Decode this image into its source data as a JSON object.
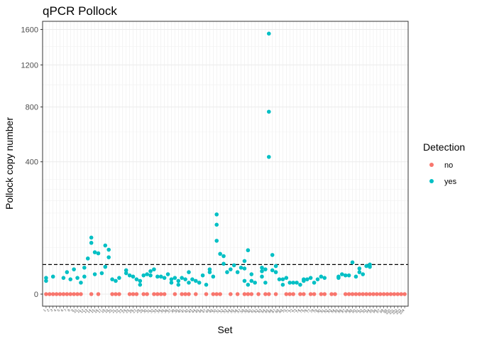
{
  "chart_data": {
    "type": "scatter",
    "title": "qPCR Pollock",
    "xlabel": "Set",
    "ylabel": "Pollock copy number",
    "y_scale": "sqrt",
    "ylim": [
      0,
      1700
    ],
    "yticks": [
      0,
      400,
      800,
      1200,
      1600
    ],
    "ytick_labels": [
      "0",
      "400",
      "800",
      "1200",
      "1600"
    ],
    "grid": true,
    "threshold_line": {
      "y": 20,
      "style": "dashed"
    },
    "legend": {
      "title": "Detection",
      "position": "right",
      "entries": [
        "no",
        "yes"
      ]
    },
    "series_colors": {
      "no": "#F8766D",
      "yes": "#00BFC4"
    },
    "x_categories": [
      "1",
      "2",
      "3",
      "4",
      "5",
      "6",
      "7",
      "8",
      "9",
      "10",
      "11",
      "12",
      "13",
      "14",
      "15",
      "16",
      "17",
      "18",
      "19",
      "20",
      "21",
      "22",
      "23",
      "24",
      "25",
      "26",
      "27",
      "28",
      "29",
      "30",
      "31",
      "32",
      "33",
      "34",
      "35",
      "36",
      "37",
      "38",
      "39",
      "40",
      "41",
      "42",
      "43",
      "44",
      "45",
      "46",
      "47",
      "48",
      "49",
      "50",
      "51",
      "52",
      "53",
      "54",
      "55",
      "56",
      "57",
      "58",
      "59",
      "60",
      "61",
      "62",
      "63",
      "64",
      "65",
      "66",
      "67",
      "68",
      "69",
      "70",
      "71",
      "72",
      "73",
      "74",
      "75",
      "76",
      "77",
      "78",
      "79",
      "80",
      "81",
      "82",
      "83",
      "84",
      "85",
      "86",
      "87",
      "88",
      "89",
      "90",
      "91",
      "92",
      "93",
      "94",
      "95",
      "96",
      "97",
      "98",
      "99",
      "100",
      "101",
      "102",
      "103",
      "104"
    ],
    "series": [
      {
        "name": "no",
        "points": [
          [
            1,
            0
          ],
          [
            2,
            0
          ],
          [
            3,
            0
          ],
          [
            4,
            0
          ],
          [
            5,
            0
          ],
          [
            6,
            0
          ],
          [
            7,
            0
          ],
          [
            8,
            0
          ],
          [
            9,
            0
          ],
          [
            10,
            0
          ],
          [
            11,
            0
          ],
          [
            14,
            0
          ],
          [
            16,
            0
          ],
          [
            20,
            0
          ],
          [
            21,
            0
          ],
          [
            22,
            0
          ],
          [
            25,
            0
          ],
          [
            26,
            0
          ],
          [
            27,
            0
          ],
          [
            29,
            0
          ],
          [
            30,
            0
          ],
          [
            32,
            0
          ],
          [
            33,
            0
          ],
          [
            34,
            0
          ],
          [
            35,
            0
          ],
          [
            38,
            0
          ],
          [
            40,
            0
          ],
          [
            41,
            0
          ],
          [
            42,
            0
          ],
          [
            44,
            0
          ],
          [
            47,
            0
          ],
          [
            49,
            0
          ],
          [
            50,
            0
          ],
          [
            51,
            0
          ],
          [
            54,
            0
          ],
          [
            56,
            0
          ],
          [
            58,
            0
          ],
          [
            59,
            0
          ],
          [
            60,
            0
          ],
          [
            62,
            0
          ],
          [
            64,
            0
          ],
          [
            65,
            0
          ],
          [
            67,
            0
          ],
          [
            70,
            0
          ],
          [
            71,
            0
          ],
          [
            72,
            0
          ],
          [
            74,
            0
          ],
          [
            75,
            0
          ],
          [
            77,
            0
          ],
          [
            78,
            0
          ],
          [
            80,
            0
          ],
          [
            81,
            0
          ],
          [
            83,
            0
          ],
          [
            84,
            0
          ],
          [
            87,
            0
          ],
          [
            88,
            0
          ],
          [
            89,
            0
          ],
          [
            90,
            0
          ],
          [
            91,
            0
          ],
          [
            92,
            0
          ],
          [
            93,
            0
          ],
          [
            94,
            0
          ],
          [
            95,
            0
          ],
          [
            96,
            0
          ],
          [
            97,
            0
          ],
          [
            98,
            0
          ],
          [
            99,
            0
          ],
          [
            100,
            0
          ],
          [
            101,
            0
          ],
          [
            102,
            0
          ],
          [
            103,
            0
          ],
          [
            104,
            0
          ]
        ]
      },
      {
        "name": "yes",
        "points": [
          [
            1,
            4
          ],
          [
            1,
            6
          ],
          [
            3,
            7
          ],
          [
            6,
            6
          ],
          [
            7,
            11
          ],
          [
            8,
            5
          ],
          [
            9,
            14
          ],
          [
            10,
            6
          ],
          [
            11,
            3
          ],
          [
            12,
            7
          ],
          [
            12,
            16
          ],
          [
            13,
            29
          ],
          [
            14,
            60
          ],
          [
            14,
            73
          ],
          [
            15,
            40
          ],
          [
            15,
            9
          ],
          [
            16,
            38
          ],
          [
            17,
            10
          ],
          [
            18,
            17
          ],
          [
            18,
            54
          ],
          [
            19,
            31
          ],
          [
            19,
            45
          ],
          [
            20,
            5
          ],
          [
            21,
            4
          ],
          [
            22,
            6
          ],
          [
            24,
            10
          ],
          [
            24,
            13
          ],
          [
            25,
            8
          ],
          [
            26,
            7
          ],
          [
            27,
            5
          ],
          [
            28,
            4
          ],
          [
            28,
            2
          ],
          [
            29,
            8
          ],
          [
            30,
            9
          ],
          [
            31,
            8
          ],
          [
            31,
            12
          ],
          [
            32,
            14
          ],
          [
            33,
            7
          ],
          [
            34,
            7
          ],
          [
            35,
            6
          ],
          [
            36,
            9
          ],
          [
            37,
            5
          ],
          [
            37,
            3
          ],
          [
            38,
            6
          ],
          [
            39,
            4
          ],
          [
            39,
            2
          ],
          [
            40,
            6
          ],
          [
            41,
            5
          ],
          [
            42,
            3
          ],
          [
            42,
            11
          ],
          [
            43,
            5
          ],
          [
            44,
            4
          ],
          [
            45,
            3
          ],
          [
            46,
            8
          ],
          [
            47,
            2
          ],
          [
            48,
            14
          ],
          [
            48,
            11
          ],
          [
            49,
            7
          ],
          [
            50,
            110
          ],
          [
            50,
            65
          ],
          [
            50,
            145
          ],
          [
            51,
            37
          ],
          [
            52,
            33
          ],
          [
            52,
            21
          ],
          [
            53,
            11
          ],
          [
            54,
            14
          ],
          [
            55,
            19
          ],
          [
            56,
            11
          ],
          [
            57,
            16
          ],
          [
            58,
            4
          ],
          [
            58,
            25
          ],
          [
            58,
            15
          ],
          [
            59,
            2
          ],
          [
            59,
            44
          ],
          [
            60,
            4
          ],
          [
            60,
            9
          ],
          [
            61,
            3
          ],
          [
            63,
            12
          ],
          [
            63,
            16
          ],
          [
            63,
            7
          ],
          [
            64,
            3
          ],
          [
            64,
            14
          ],
          [
            65,
            430
          ],
          [
            65,
            760
          ],
          [
            65,
            1550
          ],
          [
            66,
            35
          ],
          [
            66,
            13
          ],
          [
            67,
            18
          ],
          [
            67,
            11
          ],
          [
            68,
            5
          ],
          [
            69,
            2
          ],
          [
            69,
            5
          ],
          [
            70,
            6
          ],
          [
            71,
            3
          ],
          [
            72,
            3
          ],
          [
            73,
            3
          ],
          [
            74,
            2
          ],
          [
            75,
            4
          ],
          [
            75,
            5
          ],
          [
            76,
            5
          ],
          [
            77,
            6
          ],
          [
            78,
            3
          ],
          [
            79,
            5
          ],
          [
            80,
            7
          ],
          [
            81,
            6
          ],
          [
            85,
            7
          ],
          [
            85,
            6
          ],
          [
            86,
            9
          ],
          [
            87,
            8
          ],
          [
            88,
            8
          ],
          [
            89,
            23
          ],
          [
            90,
            7
          ],
          [
            91,
            11
          ],
          [
            91,
            15
          ],
          [
            92,
            9
          ],
          [
            93,
            18
          ],
          [
            94,
            17
          ],
          [
            94,
            20
          ]
        ]
      }
    ]
  }
}
